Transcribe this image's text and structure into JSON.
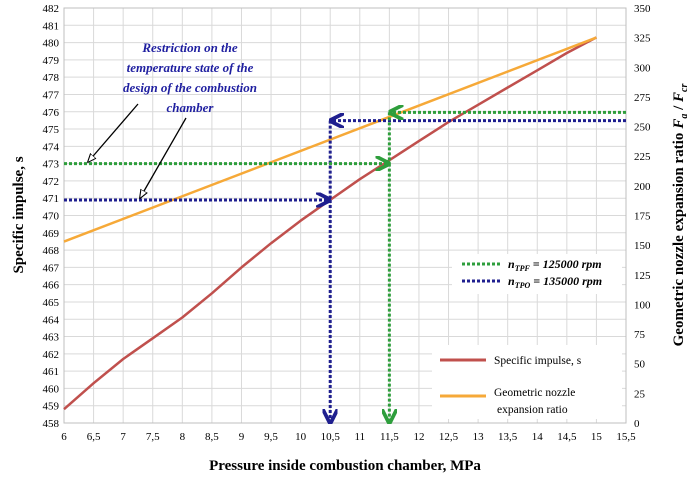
{
  "chart_data": {
    "type": "line",
    "xlabel": "Pressure inside combustion chamber, MPa",
    "ylabel": "Specific impulse, s",
    "y2label": "Geometric nozzle expansion ratio",
    "y2label_math": {
      "F": "F",
      "a": "a",
      "slash": " / ",
      "cr": "cr"
    },
    "xlim": [
      6,
      15.5
    ],
    "ylim": [
      458,
      482
    ],
    "y2lim": [
      0,
      350
    ],
    "x_ticks": [
      "6",
      "6,5",
      "7",
      "7,5",
      "8",
      "8,5",
      "9",
      "9,5",
      "10",
      "10,5",
      "11",
      "11,5",
      "12",
      "12,5",
      "13",
      "13,5",
      "14",
      "14,5",
      "15",
      "15,5"
    ],
    "y_ticks": [
      "458",
      "459",
      "460",
      "461",
      "462",
      "463",
      "464",
      "465",
      "466",
      "467",
      "468",
      "469",
      "470",
      "471",
      "472",
      "473",
      "474",
      "475",
      "476",
      "477",
      "478",
      "479",
      "480",
      "481",
      "482"
    ],
    "y2_ticks": [
      "0",
      "25",
      "50",
      "75",
      "100",
      "125",
      "150",
      "175",
      "200",
      "225",
      "250",
      "275",
      "300",
      "325",
      "350"
    ],
    "grid": true,
    "series": [
      {
        "name": "Specific impulse, s",
        "axis": "left",
        "color": "#c0504d",
        "x": [
          6,
          6.5,
          7,
          7.5,
          8,
          8.5,
          9,
          9.5,
          10,
          10.5,
          11,
          11.5,
          12,
          12.5,
          13,
          13.5,
          14,
          14.5,
          15
        ],
        "y": [
          458.8,
          460.3,
          461.7,
          462.9,
          464.1,
          465.5,
          467.0,
          468.4,
          469.7,
          470.9,
          472.1,
          473.2,
          474.3,
          475.4,
          476.4,
          477.4,
          478.4,
          479.4,
          480.3
        ]
      },
      {
        "name": "Geometric nozzle expansion ratio",
        "axis": "right",
        "color": "#f6a938",
        "x": [
          6,
          15
        ],
        "y": [
          153,
          325
        ]
      }
    ],
    "legend": {
      "position": "bottom-right",
      "labels": [
        "Specific impulse, s",
        "Geometric nozzle",
        "expansion ratio"
      ]
    },
    "rpm_legend": [
      {
        "label_n": "n",
        "sub": "TPF",
        "value": " = 125000 rpm",
        "color": "#2e9e3c"
      },
      {
        "label_n": "n",
        "sub": "TPO",
        "value": " = 135000 rpm",
        "color": "#1f1f8f"
      }
    ],
    "annotation": {
      "lines": [
        "Restriction on the",
        "temperature state of the",
        "design of the combustion",
        "chamber"
      ],
      "color": "#1f1fa0"
    },
    "restrictions": [
      {
        "color": "#1f1f8f",
        "x": 10.5,
        "impulse": 470.9,
        "ratio": 255
      },
      {
        "color": "#2e9e3c",
        "x": 11.5,
        "impulse": 473.0,
        "ratio": 262
      }
    ]
  }
}
